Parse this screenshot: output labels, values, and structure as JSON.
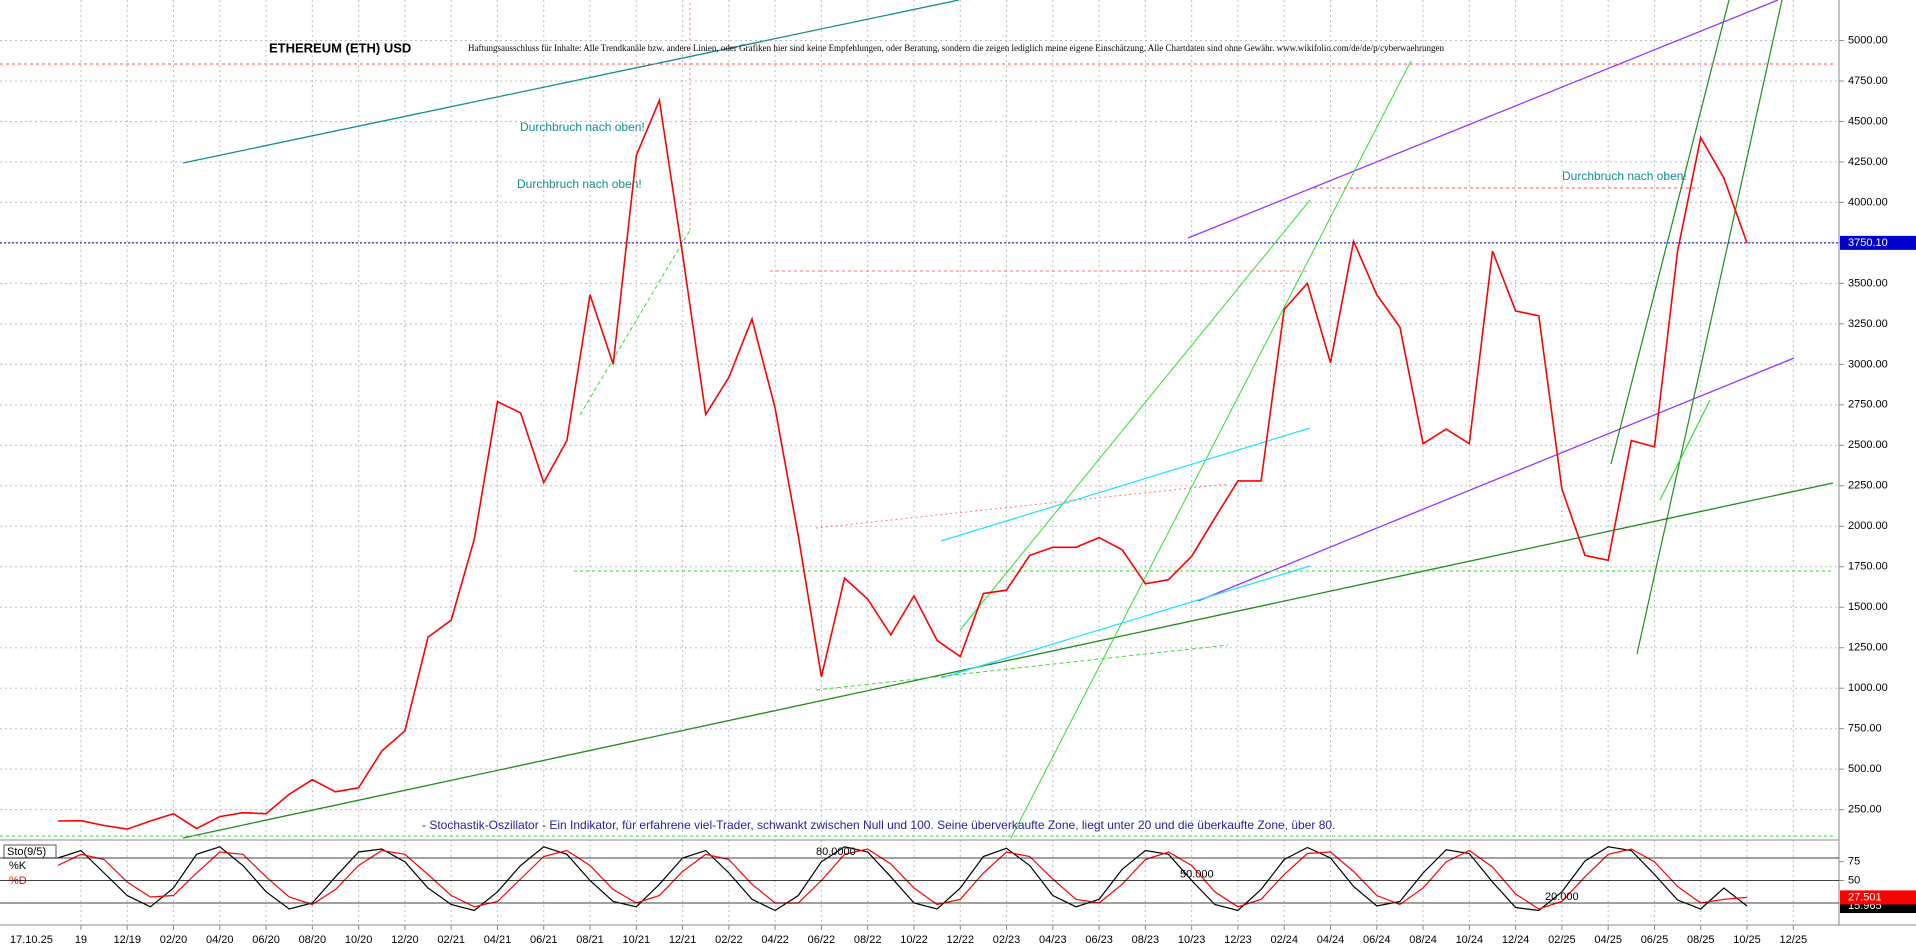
{
  "chart_data": [
    {
      "type": "line",
      "title": "ETHEREUM (ETH) USD",
      "subtitle": "Haftungsausschluss für Inhalte: Alle Trendkanäle bzw. andere Linien, oder Grafiken hier sind keine Empfehlungen, oder Beratung, sondern die zeigen lediglich meine eigene Einschätzung. Alle Chartdaten sind ohne Gewähr. www.wikifolio.com/de/de/p/cyberwaehrungen",
      "annotations": [
        "Durchbruch nach oben!",
        "Durchbruch nach oben!",
        "Durchbruch nach oben!",
        "- Stochastik-Oszillator - Ein Indikator, für erfahrene viel-Trader, schwankt zwischen Null und 100. Seine überverkaufte Zone, liegt unter 20 und die überkaufte Zone, über 80."
      ],
      "date_label": "17.10.25",
      "x": [
        "09/19",
        "10/19",
        "11/19",
        "12/19",
        "01/20",
        "02/20",
        "03/20",
        "04/20",
        "05/20",
        "06/20",
        "07/20",
        "08/20",
        "09/20",
        "10/20",
        "11/20",
        "12/20",
        "01/21",
        "02/21",
        "03/21",
        "04/21",
        "05/21",
        "06/21",
        "07/21",
        "08/21",
        "09/21",
        "10/21",
        "11/21",
        "12/21",
        "01/22",
        "02/22",
        "03/22",
        "04/22",
        "05/22",
        "06/22",
        "07/22",
        "08/22",
        "09/22",
        "10/22",
        "11/22",
        "12/22",
        "01/23",
        "02/23",
        "03/23",
        "04/23",
        "05/23",
        "06/23",
        "07/23",
        "08/23",
        "09/23",
        "10/23",
        "11/23",
        "12/23",
        "01/24",
        "02/24",
        "03/24",
        "04/24",
        "05/24",
        "06/24",
        "07/24",
        "08/24",
        "09/24",
        "10/24",
        "11/24",
        "12/24",
        "01/25",
        "02/25",
        "03/25",
        "04/25",
        "05/25",
        "06/25",
        "07/25",
        "08/25",
        "09/25",
        "10/25"
      ],
      "values": [
        180,
        182,
        152,
        130,
        180,
        225,
        133,
        207,
        231,
        225,
        345,
        435,
        360,
        385,
        612,
        737,
        1315,
        1420,
        1920,
        2770,
        2700,
        2270,
        2530,
        3430,
        3000,
        4290,
        4630,
        3680,
        2690,
        2920,
        3280,
        2730,
        1940,
        1070,
        1680,
        1550,
        1330,
        1570,
        1295,
        1195,
        1585,
        1605,
        1820,
        1870,
        1870,
        1930,
        1855,
        1645,
        1670,
        1815,
        2050,
        2280,
        2280,
        3340,
        3500,
        3010,
        3760,
        3430,
        3230,
        2510,
        2600,
        2510,
        3700,
        3330,
        3300,
        2230,
        1820,
        1790,
        2530,
        2490,
        3700,
        4400,
        4150,
        3750.1
      ],
      "color": "#ff0000",
      "last_value": {
        "value": 3750.1,
        "label": "3750.10"
      },
      "ylim": [
        75,
        5250
      ],
      "yticks": [
        {
          "value": 250,
          "label": "250.00"
        },
        {
          "value": 500,
          "label": "500.00"
        },
        {
          "value": 750,
          "label": "750.00"
        },
        {
          "value": 1000,
          "label": "1000.00"
        },
        {
          "value": 1250,
          "label": "1250.00"
        },
        {
          "value": 1500,
          "label": "1500.00"
        },
        {
          "value": 1750,
          "label": "1750.00"
        },
        {
          "value": 2000,
          "label": "2000.00"
        },
        {
          "value": 2250,
          "label": "2250.00"
        },
        {
          "value": 2500,
          "label": "2500.00"
        },
        {
          "value": 2750,
          "label": "2750.00"
        },
        {
          "value": 3000,
          "label": "3000.00"
        },
        {
          "value": 3250,
          "label": "3250.00"
        },
        {
          "value": 3500,
          "label": "3500.00"
        },
        {
          "value": 3750,
          "label": "3750.00"
        },
        {
          "value": 4000,
          "label": "4000.00"
        },
        {
          "value": 4250,
          "label": "4250.00"
        },
        {
          "value": 4500,
          "label": "4500.00"
        },
        {
          "value": 4750,
          "label": "4750.00"
        },
        {
          "value": 5000,
          "label": "5000.00"
        }
      ],
      "xticks": [
        {
          "value": "10/19",
          "label": "19"
        },
        "12/19",
        "02/20",
        "04/20",
        "06/20",
        "08/20",
        "10/20",
        "12/20",
        "02/21",
        "04/21",
        "06/21",
        "08/21",
        "10/21",
        "12/21",
        "02/22",
        "04/22",
        "06/22",
        "08/22",
        "10/22",
        "12/22",
        "02/23",
        "04/23",
        "06/23",
        "08/23",
        "10/23",
        "12/23",
        "02/24",
        "04/24",
        "06/24",
        "08/24",
        "10/24",
        "12/24",
        "02/25",
        "04/25",
        "06/25",
        "08/25",
        "10/25",
        "12/25"
      ],
      "grid": true
    },
    {
      "type": "line",
      "title": "Sto(9/5)",
      "x": [
        "09/19",
        "10/19",
        "11/19",
        "12/19",
        "01/20",
        "02/20",
        "03/20",
        "04/20",
        "05/20",
        "06/20",
        "07/20",
        "08/20",
        "09/20",
        "10/20",
        "11/20",
        "12/20",
        "01/21",
        "02/21",
        "03/21",
        "04/21",
        "05/21",
        "06/21",
        "07/21",
        "08/21",
        "09/21",
        "10/21",
        "11/21",
        "12/21",
        "01/22",
        "02/22",
        "03/22",
        "04/22",
        "05/22",
        "06/22",
        "07/22",
        "08/22",
        "09/22",
        "10/22",
        "11/22",
        "12/22",
        "01/23",
        "02/23",
        "03/23",
        "04/23",
        "05/23",
        "06/23",
        "07/23",
        "08/23",
        "09/23",
        "10/23",
        "11/23",
        "12/23",
        "01/24",
        "02/24",
        "03/24",
        "04/24",
        "05/24",
        "06/24",
        "07/24",
        "08/24",
        "09/24",
        "10/24",
        "11/24",
        "12/24",
        "01/25",
        "02/25",
        "03/25",
        "04/25",
        "05/25",
        "06/25",
        "07/25",
        "08/25",
        "09/25",
        "10/25"
      ],
      "series": [
        {
          "name": "%K",
          "color": "#000000",
          "values": [
            80,
            90,
            60,
            30,
            15,
            40,
            85,
            95,
            70,
            35,
            12,
            20,
            55,
            88,
            92,
            75,
            40,
            18,
            10,
            35,
            70,
            95,
            85,
            50,
            22,
            15,
            45,
            80,
            90,
            60,
            25,
            10,
            30,
            75,
            95,
            88,
            55,
            20,
            12,
            40,
            82,
            93,
            70,
            30,
            15,
            25,
            65,
            90,
            85,
            50,
            18,
            10,
            38,
            78,
            94,
            80,
            42,
            16,
            22,
            60,
            91,
            86,
            48,
            14,
            10,
            35,
            76,
            95,
            90,
            58,
            24,
            12,
            40,
            15.965
          ]
        },
        {
          "name": "%D",
          "color": "#ff0000",
          "values": [
            70,
            85,
            78,
            48,
            28,
            30,
            60,
            88,
            85,
            55,
            28,
            18,
            38,
            70,
            90,
            85,
            58,
            30,
            15,
            22,
            52,
            82,
            90,
            70,
            38,
            20,
            30,
            62,
            85,
            78,
            45,
            20,
            20,
            50,
            85,
            92,
            72,
            40,
            18,
            25,
            60,
            88,
            82,
            52,
            25,
            20,
            45,
            78,
            88,
            70,
            35,
            15,
            25,
            58,
            86,
            88,
            62,
            30,
            18,
            40,
            75,
            90,
            68,
            32,
            12,
            22,
            55,
            85,
            92,
            75,
            42,
            20,
            25,
            27.501
          ]
        }
      ],
      "levels": [
        {
          "value": 80,
          "label": "80.0000"
        },
        {
          "value": 50,
          "label": "50.000"
        },
        {
          "value": 20,
          "label": "20.000"
        }
      ],
      "ylim": [
        0,
        100
      ],
      "yticks": [
        50,
        75
      ]
    }
  ]
}
